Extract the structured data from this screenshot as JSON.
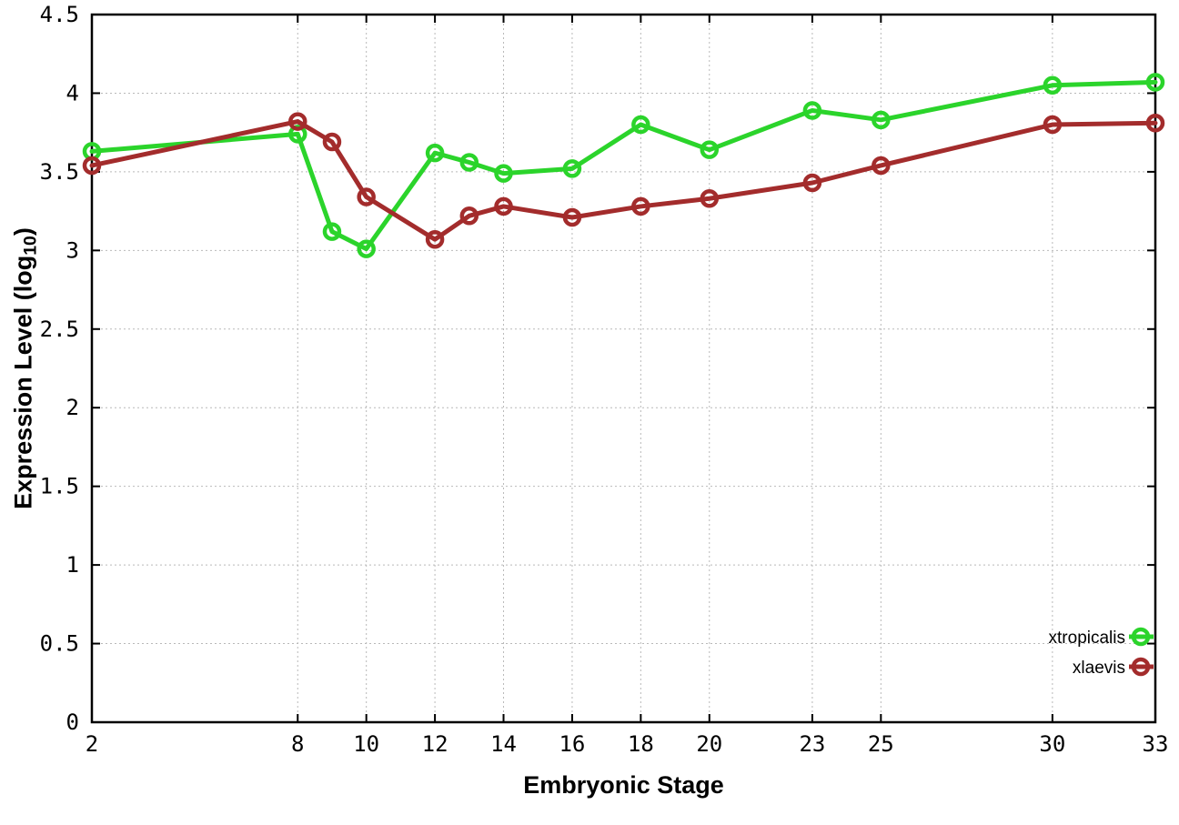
{
  "chart_data": {
    "type": "line",
    "title": "",
    "xlabel": "Embryonic Stage",
    "ylabel": "Expression Level (log10)",
    "ylabel_parts": {
      "pre": "Expression Level (log",
      "sub": "10",
      "post": ")"
    },
    "xlim": [
      2,
      33
    ],
    "ylim": [
      0,
      4.5
    ],
    "grid": true,
    "legend_position": "bottom-right",
    "marker": "open-circle",
    "background": "#ffffff",
    "grid_color": "#b9b9b9",
    "border_color": "#000000",
    "x": [
      2,
      8,
      9,
      10,
      12,
      13,
      14,
      16,
      18,
      20,
      23,
      25,
      30,
      33
    ],
    "series": [
      {
        "name": "xtropicalis",
        "color": "#2bd42b",
        "values": [
          3.63,
          3.74,
          3.12,
          3.01,
          3.62,
          3.56,
          3.49,
          3.52,
          3.8,
          3.64,
          3.89,
          3.83,
          4.05,
          4.07
        ]
      },
      {
        "name": "xlaevis",
        "color": "#a32c2c",
        "values": [
          3.54,
          3.82,
          3.69,
          3.34,
          3.07,
          3.22,
          3.28,
          3.21,
          3.28,
          3.33,
          3.43,
          3.54,
          3.8,
          3.81
        ]
      }
    ],
    "xticks": [
      {
        "v": 2,
        "label": "2"
      },
      {
        "v": 8,
        "label": "8"
      },
      {
        "v": 10,
        "label": "10"
      },
      {
        "v": 12,
        "label": "12"
      },
      {
        "v": 14,
        "label": "14"
      },
      {
        "v": 16,
        "label": "16"
      },
      {
        "v": 18,
        "label": "18"
      },
      {
        "v": 20,
        "label": "20"
      },
      {
        "v": 23,
        "label": "23"
      },
      {
        "v": 25,
        "label": "25"
      },
      {
        "v": 30,
        "label": "30"
      },
      {
        "v": 33,
        "label": "33"
      }
    ],
    "yticks": [
      {
        "v": 0,
        "label": "0"
      },
      {
        "v": 0.5,
        "label": "0.5"
      },
      {
        "v": 1,
        "label": "1"
      },
      {
        "v": 1.5,
        "label": "1.5"
      },
      {
        "v": 2,
        "label": "2"
      },
      {
        "v": 2.5,
        "label": "2.5"
      },
      {
        "v": 3,
        "label": "3"
      },
      {
        "v": 3.5,
        "label": "3.5"
      },
      {
        "v": 4,
        "label": "4"
      },
      {
        "v": 4.5,
        "label": "4.5"
      }
    ]
  }
}
